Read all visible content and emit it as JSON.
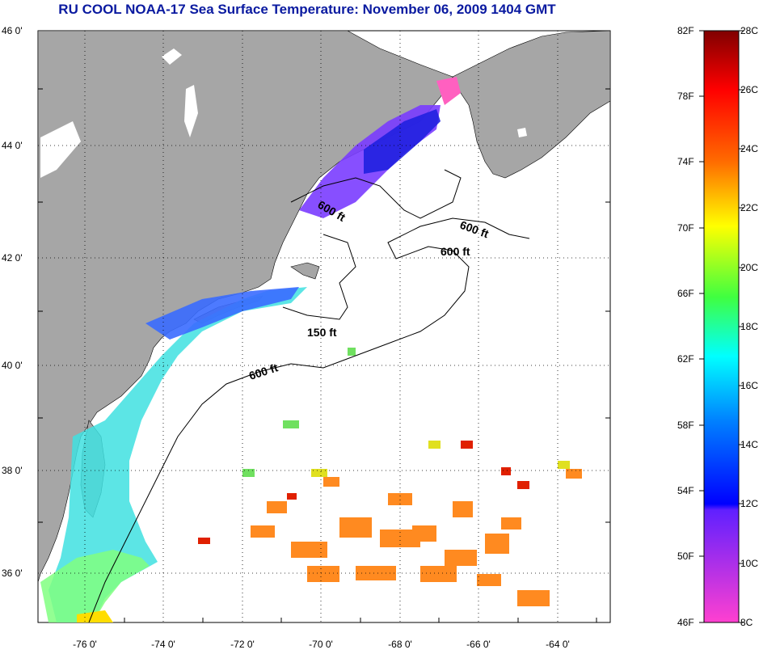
{
  "title": "RU COOL  NOAA-17  Sea Surface Temperature:  November 06, 2009 1404 GMT",
  "lat_labels": [
    "46 0'",
    "44 0'",
    "42 0'",
    "40 0'",
    "38 0'",
    "36 0'"
  ],
  "lon_labels": [
    "-76 0'",
    "-74 0'",
    "-72 0'",
    "-70 0'",
    "-68 0'",
    "-66 0'",
    "-64 0'"
  ],
  "contour_labels": [
    "600 ft",
    "600 ft",
    "600 ft",
    "150 ft",
    "600 ft"
  ],
  "colorbar_f": [
    "82F",
    "78F",
    "74F",
    "70F",
    "66F",
    "62F",
    "58F",
    "54F",
    "50F",
    "46F"
  ],
  "colorbar_c": [
    "28C",
    "26C",
    "24C",
    "22C",
    "20C",
    "18C",
    "16C",
    "14C",
    "12C",
    "10C",
    "8C"
  ],
  "colors": {
    "land": "#a6a6a6",
    "title": "#0a1aa0",
    "grid": "#000000"
  },
  "colorbar_stops": [
    "#8b0000",
    "#ff0000",
    "#ff8000",
    "#ffff00",
    "#00ff40",
    "#00ffff",
    "#0040ff",
    "#0000ff",
    "#8020ff",
    "#ff40c0",
    "#ff60e0"
  ]
}
